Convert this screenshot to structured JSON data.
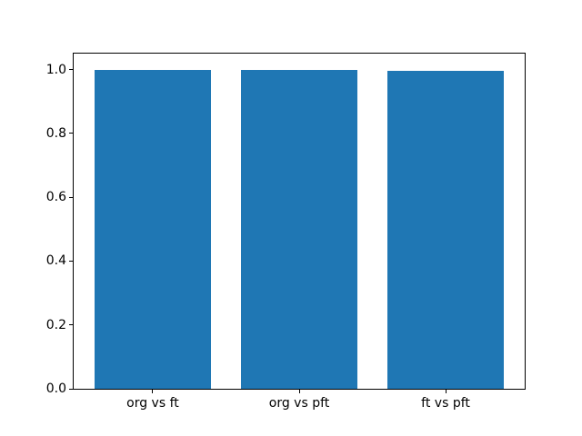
{
  "figure": {
    "background_color": "#ffffff"
  },
  "chart_data": {
    "type": "bar",
    "title": "",
    "xlabel": "",
    "ylabel": "",
    "categories": [
      "org vs ft",
      "org vs pft",
      "ft vs pft"
    ],
    "values": [
      0.998,
      0.998,
      0.995
    ],
    "bar_color": "#1f77b4",
    "bar_width": 0.8,
    "ylim": [
      0,
      1.05
    ],
    "yticks": [
      0.0,
      0.2,
      0.4,
      0.6,
      0.8,
      1.0
    ],
    "ytick_labels": [
      "0.0",
      "0.2",
      "0.4",
      "0.6",
      "0.8",
      "1.0"
    ],
    "grid": false,
    "legend": null,
    "axis_color": "#000000",
    "text_color": "#000000"
  }
}
